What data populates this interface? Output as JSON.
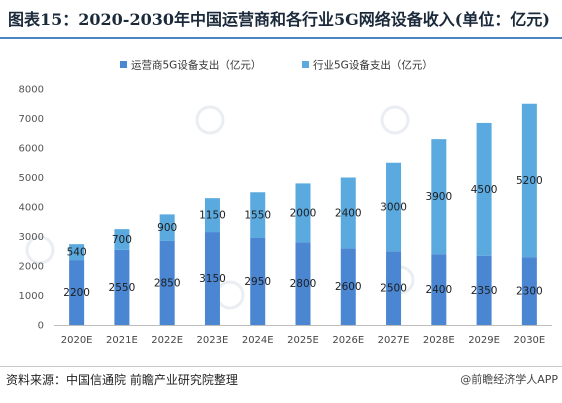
{
  "title": "图表15：2020-2030年中国运营商和各行业5G网络设备收入(单位：亿元)",
  "source": "资料来源：中国信通院 前瞻产业研究院整理",
  "brand": "@前瞻经济学人APP",
  "colors": {
    "operator": "#4a86d2",
    "industry": "#5aa9df",
    "title_rule": "#4c85c5"
  },
  "chart_data": {
    "type": "bar",
    "stacked": true,
    "categories": [
      "2020E",
      "2021E",
      "2022E",
      "2023E",
      "2024E",
      "2025E",
      "2026E",
      "2027E",
      "2028E",
      "2029E",
      "2030E"
    ],
    "series": [
      {
        "name": "运营商5G设备支出（亿元）",
        "values": [
          2200,
          2550,
          2850,
          3150,
          2950,
          2800,
          2600,
          2500,
          2400,
          2350,
          2300
        ]
      },
      {
        "name": "行业5G设备支出（亿元）",
        "values": [
          540,
          700,
          900,
          1150,
          1550,
          2000,
          2400,
          3000,
          3900,
          4500,
          5200
        ]
      }
    ],
    "ylim": [
      0,
      8000
    ],
    "yticks": [
      0,
      1000,
      2000,
      3000,
      4000,
      5000,
      6000,
      7000,
      8000
    ],
    "grid": false,
    "legend": "top-center",
    "xlabel": "",
    "ylabel": ""
  }
}
